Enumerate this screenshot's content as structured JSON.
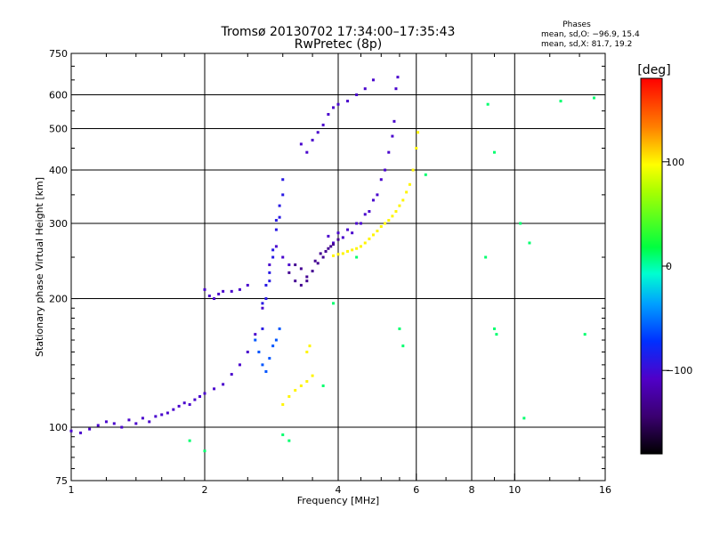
{
  "chart_data": {
    "type": "scatter",
    "title": "Tromsø 20130702 17:34:00–17:35:43",
    "subtitle": "RwPretec (8p)",
    "xlabel": "Frequency [MHz]",
    "ylabel": "Stationary phase Virtual Height [km]",
    "xscale": "log",
    "yscale": "log",
    "xlim": [
      1,
      16
    ],
    "ylim": [
      75,
      750
    ],
    "grid": true,
    "x_ticks": [
      1,
      2,
      4,
      6,
      8,
      10,
      16
    ],
    "x_tick_labels": [
      "1",
      "2",
      "4",
      "6",
      "8",
      "10",
      "16"
    ],
    "x_gridlines": [
      2,
      4,
      6,
      8,
      10
    ],
    "y_ticks": [
      75,
      100,
      200,
      300,
      400,
      500,
      600,
      750
    ],
    "y_tick_labels": [
      "75",
      "100",
      "200",
      "300",
      "400",
      "500",
      "600",
      "750"
    ],
    "y_gridlines": [
      100,
      200,
      300,
      400,
      500,
      600
    ],
    "stats": {
      "header": "Phases",
      "line_O": "mean, sd,O: −96.9, 15.4",
      "line_X": "mean, sd,X:  81.7, 19.2"
    },
    "colorbar": {
      "label": "[deg]",
      "range": [
        -180,
        180
      ],
      "ticks": [
        100,
        0,
        -100
      ],
      "tick_labels": [
        "100",
        "0",
        "−100"
      ]
    },
    "series": [
      {
        "phase": -105,
        "points": [
          [
            1.0,
            98
          ],
          [
            1.05,
            97
          ],
          [
            1.1,
            99
          ],
          [
            1.15,
            101
          ],
          [
            1.2,
            103
          ],
          [
            1.25,
            102
          ],
          [
            1.3,
            100
          ],
          [
            1.35,
            104
          ],
          [
            1.4,
            102
          ],
          [
            1.45,
            105
          ],
          [
            1.5,
            103
          ],
          [
            1.55,
            106
          ],
          [
            1.6,
            107
          ],
          [
            1.65,
            108
          ],
          [
            1.7,
            110
          ],
          [
            1.75,
            112
          ],
          [
            1.8,
            114
          ],
          [
            1.85,
            113
          ],
          [
            1.9,
            116
          ],
          [
            1.95,
            118
          ],
          [
            2.0,
            120
          ],
          [
            2.1,
            123
          ],
          [
            2.2,
            126
          ],
          [
            2.3,
            133
          ],
          [
            2.4,
            140
          ],
          [
            2.5,
            150
          ],
          [
            2.6,
            165
          ],
          [
            2.7,
            190
          ],
          [
            2.8,
            240
          ],
          [
            2.9,
            265
          ],
          [
            3.0,
            250
          ],
          [
            3.1,
            240
          ],
          [
            2.0,
            210
          ],
          [
            2.05,
            203
          ],
          [
            2.1,
            200
          ],
          [
            2.15,
            205
          ],
          [
            2.2,
            208
          ],
          [
            2.3,
            208
          ],
          [
            2.4,
            210
          ],
          [
            2.5,
            215
          ],
          [
            3.3,
            460
          ],
          [
            3.4,
            440
          ],
          [
            3.5,
            470
          ],
          [
            3.6,
            490
          ],
          [
            3.7,
            510
          ],
          [
            3.8,
            540
          ],
          [
            3.9,
            560
          ],
          [
            4.0,
            570
          ],
          [
            4.2,
            580
          ],
          [
            4.4,
            600
          ],
          [
            4.6,
            620
          ],
          [
            4.8,
            650
          ],
          [
            3.8,
            280
          ],
          [
            4.0,
            285
          ],
          [
            4.2,
            290
          ],
          [
            4.4,
            300
          ],
          [
            4.6,
            315
          ],
          [
            4.8,
            340
          ],
          [
            5.0,
            380
          ],
          [
            5.2,
            440
          ],
          [
            5.35,
            520
          ],
          [
            5.45,
            660
          ],
          [
            5.4,
            620
          ],
          [
            5.3,
            480
          ],
          [
            5.1,
            400
          ],
          [
            4.9,
            350
          ],
          [
            3.9,
            270
          ],
          [
            4.1,
            278
          ],
          [
            4.3,
            285
          ],
          [
            4.5,
            300
          ],
          [
            4.7,
            320
          ]
        ]
      },
      {
        "phase": -90,
        "points": [
          [
            2.7,
            170
          ],
          [
            2.75,
            200
          ],
          [
            2.8,
            230
          ],
          [
            2.85,
            260
          ],
          [
            2.9,
            290
          ],
          [
            2.95,
            330
          ],
          [
            3.0,
            380
          ],
          [
            2.8,
            220
          ],
          [
            2.85,
            250
          ],
          [
            2.95,
            310
          ],
          [
            3.0,
            350
          ],
          [
            2.9,
            305
          ],
          [
            2.75,
            215
          ],
          [
            2.7,
            195
          ]
        ]
      },
      {
        "phase": -130,
        "points": [
          [
            3.1,
            230
          ],
          [
            3.2,
            220
          ],
          [
            3.3,
            215
          ],
          [
            3.4,
            220
          ],
          [
            3.5,
            232
          ],
          [
            3.6,
            242
          ],
          [
            3.7,
            250
          ],
          [
            3.8,
            262
          ],
          [
            3.9,
            268
          ],
          [
            4.0,
            275
          ],
          [
            3.2,
            240
          ],
          [
            3.3,
            235
          ],
          [
            3.4,
            225
          ],
          [
            3.55,
            245
          ],
          [
            3.65,
            255
          ],
          [
            3.75,
            258
          ],
          [
            3.85,
            265
          ]
        ]
      },
      {
        "phase": 100,
        "points": [
          [
            3.9,
            252
          ],
          [
            4.0,
            254
          ],
          [
            4.2,
            258
          ],
          [
            4.4,
            262
          ],
          [
            4.6,
            270
          ],
          [
            4.8,
            282
          ],
          [
            5.0,
            295
          ],
          [
            5.2,
            305
          ],
          [
            5.4,
            320
          ],
          [
            5.6,
            340
          ],
          [
            5.8,
            370
          ],
          [
            5.9,
            400
          ],
          [
            6.0,
            450
          ],
          [
            6.05,
            490
          ],
          [
            4.1,
            255
          ],
          [
            4.3,
            260
          ],
          [
            4.5,
            265
          ],
          [
            4.7,
            276
          ],
          [
            4.9,
            288
          ],
          [
            5.1,
            300
          ],
          [
            5.3,
            312
          ],
          [
            5.5,
            330
          ],
          [
            5.7,
            355
          ],
          [
            3.0,
            113
          ],
          [
            3.1,
            118
          ],
          [
            3.2,
            122
          ],
          [
            3.3,
            125
          ],
          [
            3.4,
            128
          ],
          [
            3.5,
            132
          ],
          [
            3.4,
            150
          ],
          [
            3.45,
            155
          ]
        ]
      },
      {
        "phase": -60,
        "points": [
          [
            2.6,
            160
          ],
          [
            2.65,
            150
          ],
          [
            2.7,
            140
          ],
          [
            2.75,
            135
          ],
          [
            2.8,
            145
          ],
          [
            2.85,
            155
          ],
          [
            2.9,
            160
          ],
          [
            2.95,
            170
          ]
        ]
      },
      {
        "phase": 10,
        "points": [
          [
            8.7,
            570
          ],
          [
            9.0,
            440
          ],
          [
            8.6,
            250
          ],
          [
            10.3,
            300
          ],
          [
            10.8,
            270
          ],
          [
            12.7,
            580
          ],
          [
            15.1,
            590
          ],
          [
            9.0,
            170
          ],
          [
            9.1,
            165
          ],
          [
            10.5,
            105
          ],
          [
            14.4,
            165
          ],
          [
            6.3,
            390
          ],
          [
            5.6,
            155
          ],
          [
            5.5,
            170
          ],
          [
            4.4,
            250
          ],
          [
            3.9,
            195
          ],
          [
            3.7,
            125
          ],
          [
            3.1,
            93
          ],
          [
            2.0,
            88
          ],
          [
            1.85,
            93
          ],
          [
            3.0,
            96
          ]
        ]
      }
    ]
  }
}
